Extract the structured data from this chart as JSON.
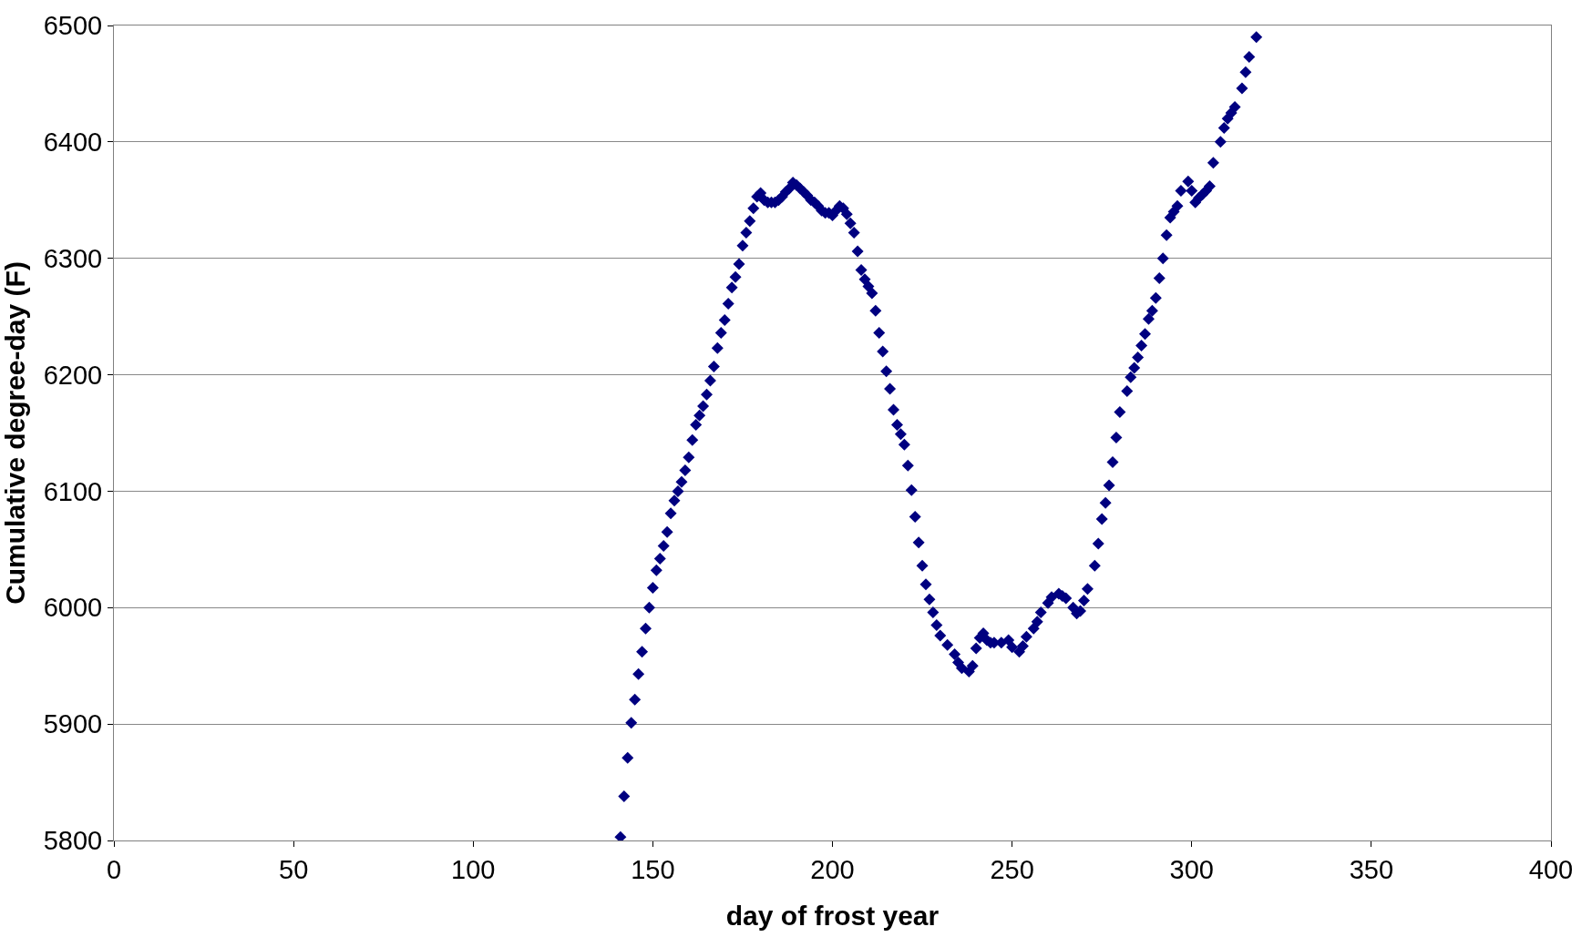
{
  "chart_data": {
    "type": "scatter",
    "xlabel": "day of frost year",
    "ylabel": "Cumulative degree-day (F)",
    "xlim": [
      0,
      400
    ],
    "xticks": [
      0,
      50,
      100,
      150,
      200,
      250,
      300,
      350,
      400
    ],
    "ylim": [
      5800,
      6500
    ],
    "yticks": [
      5800,
      5900,
      6000,
      6100,
      6200,
      6300,
      6400,
      6500
    ],
    "grid": "y",
    "marker": "diamond",
    "series": [
      {
        "color": "#000080",
        "x": [
          141,
          142,
          143,
          144,
          145,
          146,
          147,
          148,
          149,
          150,
          151,
          152,
          153,
          154,
          155,
          156,
          157,
          158,
          159,
          160,
          161,
          162,
          163,
          164,
          165,
          166,
          167,
          168,
          169,
          170,
          171,
          172,
          173,
          174,
          175,
          176,
          177,
          178,
          179,
          180,
          181,
          182,
          183,
          184,
          185,
          186,
          187,
          188,
          189,
          190,
          191,
          192,
          193,
          194,
          195,
          196,
          197,
          198,
          199,
          200,
          201,
          202,
          203,
          204,
          205,
          206,
          207,
          208,
          209,
          210,
          211,
          212,
          213,
          214,
          215,
          216,
          217,
          218,
          219,
          220,
          221,
          222,
          223,
          224,
          225,
          226,
          227,
          228,
          229,
          230,
          232,
          234,
          235,
          236,
          238,
          239,
          240,
          241,
          242,
          243,
          244,
          245,
          247,
          249,
          250,
          252,
          253,
          254,
          256,
          257,
          258,
          260,
          261,
          263,
          264,
          265,
          267,
          268,
          269,
          270,
          271,
          273,
          274,
          275,
          276,
          277,
          278,
          279,
          280,
          282,
          283,
          284,
          285,
          286,
          287,
          288,
          289,
          290,
          291,
          292,
          293,
          294,
          295,
          296,
          297,
          299,
          300,
          301,
          302,
          303,
          304,
          305,
          306,
          308,
          309,
          310,
          311,
          312,
          314,
          315,
          316,
          318
        ],
        "values": [
          5803,
          5838,
          5871,
          5901,
          5921,
          5943,
          5962,
          5982,
          6000,
          6017,
          6032,
          6042,
          6053,
          6065,
          6081,
          6092,
          6100,
          6108,
          6118,
          6129,
          6144,
          6157,
          6165,
          6173,
          6183,
          6195,
          6207,
          6223,
          6236,
          6247,
          6261,
          6275,
          6284,
          6295,
          6311,
          6322,
          6332,
          6343,
          6353,
          6356,
          6350,
          6348,
          6348,
          6348,
          6350,
          6353,
          6357,
          6360,
          6365,
          6363,
          6360,
          6357,
          6354,
          6350,
          6348,
          6345,
          6341,
          6339,
          6339,
          6337,
          6341,
          6345,
          6343,
          6338,
          6330,
          6322,
          6306,
          6290,
          6282,
          6276,
          6270,
          6255,
          6236,
          6220,
          6203,
          6188,
          6170,
          6157,
          6149,
          6140,
          6122,
          6101,
          6078,
          6056,
          6036,
          6020,
          6007,
          5996,
          5985,
          5976,
          5968,
          5960,
          5953,
          5948,
          5945,
          5950,
          5965,
          5974,
          5978,
          5972,
          5970,
          5970,
          5970,
          5972,
          5966,
          5962,
          5967,
          5975,
          5982,
          5988,
          5996,
          6004,
          6009,
          6012,
          6010,
          6008,
          6000,
          5995,
          5997,
          6006,
          6016,
          6036,
          6055,
          6076,
          6090,
          6105,
          6125,
          6146,
          6168,
          6186,
          6198,
          6206,
          6215,
          6225,
          6235,
          6248,
          6255,
          6266,
          6283,
          6300,
          6320,
          6335,
          6340,
          6345,
          6358,
          6366,
          6358,
          6348,
          6352,
          6355,
          6358,
          6362,
          6382,
          6400,
          6412,
          6420,
          6425,
          6430,
          6446,
          6460,
          6473,
          6490
        ]
      }
    ]
  }
}
